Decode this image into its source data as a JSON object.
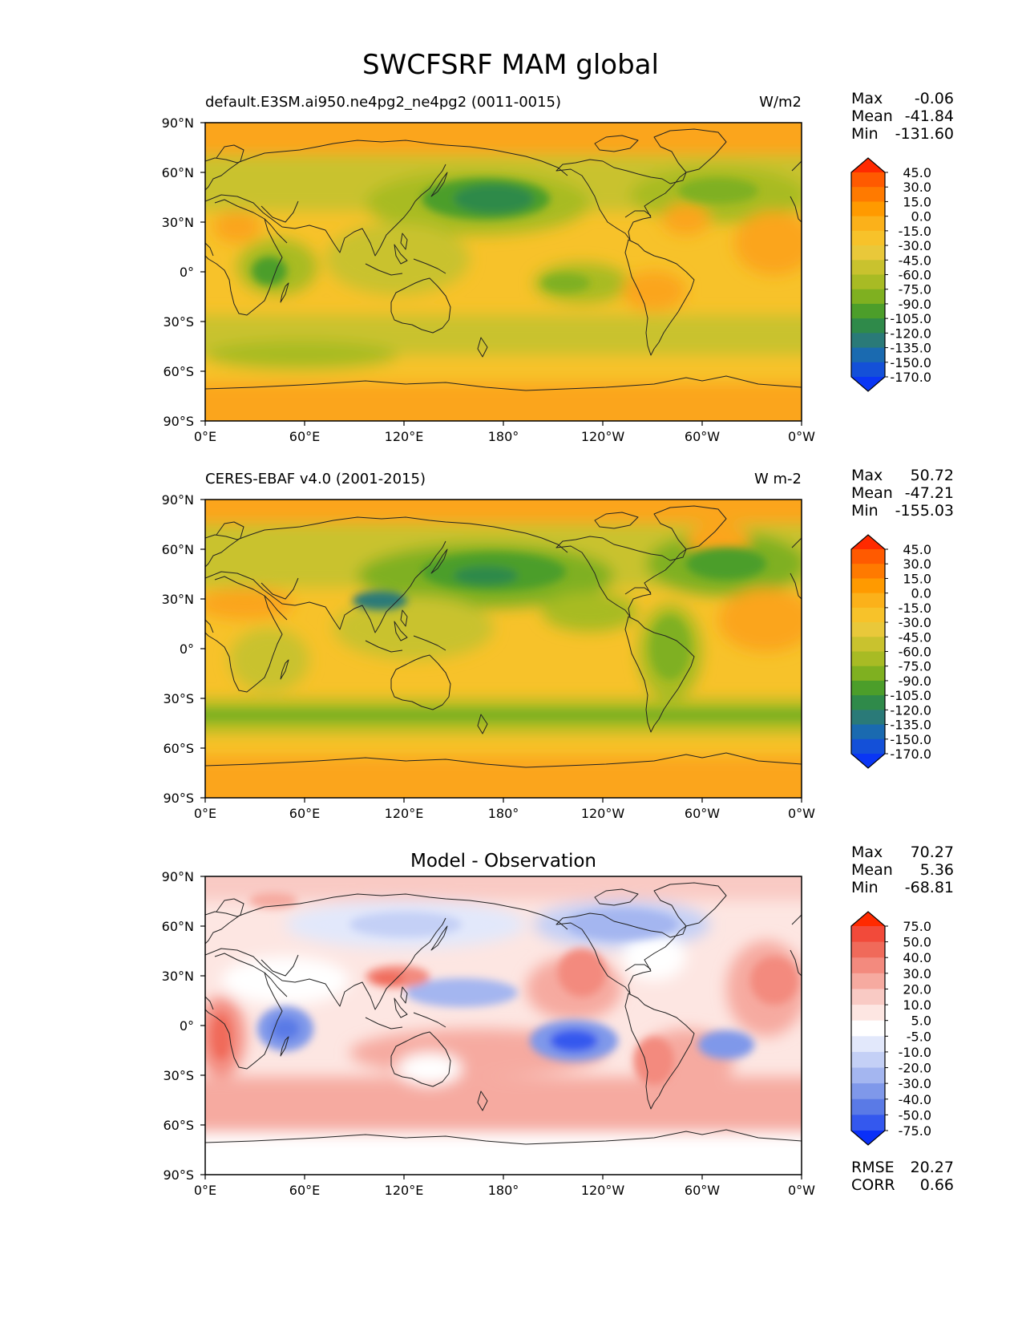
{
  "title": "SWCFSRF MAM global",
  "lat_ticks": [
    "90°N",
    "60°N",
    "30°N",
    "0°",
    "30°S",
    "60°S",
    "90°S"
  ],
  "lon_ticks": [
    "0°E",
    "60°E",
    "120°E",
    "180°",
    "120°W",
    "60°W",
    "0°W"
  ],
  "panels": [
    {
      "id": "model",
      "left_title": "default.E3SM.ai950.ne4pg2_ne4pg2 (0011-0015)",
      "center_title": "",
      "units": "W/m2",
      "stats": {
        "max_label": "Max",
        "max": "-0.06",
        "mean_label": "Mean",
        "mean": "-41.84",
        "min_label": "Min",
        "min": "-131.60"
      },
      "colorbar": {
        "levels": [
          "45.0",
          "30.0",
          "15.0",
          "0.0",
          "-15.0",
          "-30.0",
          "-45.0",
          "-60.0",
          "-75.0",
          "-90.0",
          "-105.0",
          "-120.0",
          "-135.0",
          "-150.0",
          "-170.0"
        ],
        "colors": [
          "#ff2a00",
          "#ff5a00",
          "#ff7a00",
          "#ff9a00",
          "#fbb11a",
          "#f7c22a",
          "#e9c83a",
          "#c9c22e",
          "#a8bb24",
          "#7fb020",
          "#4c9e2a",
          "#2f8a4a",
          "#2a7a78",
          "#1a6ab0",
          "#1450d8",
          "#0a36f4"
        ]
      }
    },
    {
      "id": "obs",
      "left_title": "CERES-EBAF v4.0 (2001-2015)",
      "center_title": "",
      "units": "W m-2",
      "stats": {
        "max_label": "Max",
        "max": "50.72",
        "mean_label": "Mean",
        "mean": "-47.21",
        "min_label": "Min",
        "min": "-155.03"
      },
      "colorbar": {
        "levels": [
          "45.0",
          "30.0",
          "15.0",
          "0.0",
          "-15.0",
          "-30.0",
          "-45.0",
          "-60.0",
          "-75.0",
          "-90.0",
          "-105.0",
          "-120.0",
          "-135.0",
          "-150.0",
          "-170.0"
        ],
        "colors": [
          "#ff2a00",
          "#ff5a00",
          "#ff7a00",
          "#ff9a00",
          "#fbb11a",
          "#f7c22a",
          "#e9c83a",
          "#c9c22e",
          "#a8bb24",
          "#7fb020",
          "#4c9e2a",
          "#2f8a4a",
          "#2a7a78",
          "#1a6ab0",
          "#1450d8",
          "#0a36f4"
        ]
      }
    },
    {
      "id": "diff",
      "left_title": "",
      "center_title": "Model - Observation",
      "units": "",
      "stats": {
        "max_label": "Max",
        "max": "70.27",
        "mean_label": "Mean",
        "mean": "5.36",
        "min_label": "Min",
        "min": "-68.81"
      },
      "extra_stats": {
        "rmse_label": "RMSE",
        "rmse": "20.27",
        "corr_label": "CORR",
        "corr": "0.66"
      },
      "colorbar": {
        "levels": [
          "75.0",
          "50.0",
          "40.0",
          "30.0",
          "20.0",
          "10.0",
          "5.0",
          "-5.0",
          "-10.0",
          "-20.0",
          "-30.0",
          "-40.0",
          "-50.0",
          "-75.0"
        ],
        "colors": [
          "#ff2a00",
          "#f24a3a",
          "#f06a5a",
          "#f38a7e",
          "#f6aaa0",
          "#f9cac4",
          "#fde6e2",
          "#ffffff",
          "#e2e8fb",
          "#c4d0f6",
          "#a4b6f0",
          "#7f98ea",
          "#5a7ae6",
          "#3458ee",
          "#0a30f8"
        ]
      }
    }
  ]
}
